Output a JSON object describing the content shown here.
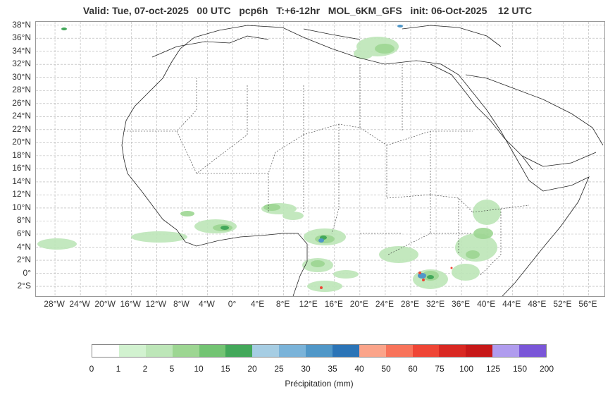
{
  "title": "Valid: Tue, 07-oct-2025   00 UTC   pcp6h   T:+6-12hr   MOL_6KM_GFS   init: 06-Oct-2025    12 UTC",
  "map": {
    "lat_labels": [
      "38°N",
      "36°N",
      "34°N",
      "32°N",
      "30°N",
      "28°N",
      "26°N",
      "24°N",
      "22°N",
      "20°N",
      "18°N",
      "16°N",
      "14°N",
      "12°N",
      "10°N",
      "8°N",
      "6°N",
      "4°N",
      "2°N",
      "0°",
      "2°S"
    ],
    "lon_labels": [
      "28°W",
      "24°W",
      "20°W",
      "16°W",
      "12°W",
      "8°W",
      "4°W",
      "0°",
      "4°E",
      "8°E",
      "12°E",
      "16°E",
      "20°E",
      "24°E",
      "28°E",
      "32°E",
      "36°E",
      "40°E",
      "44°E",
      "48°E",
      "52°E",
      "56°E"
    ],
    "colors": {
      "land_border": "#222222",
      "grid": "#b0b0b0",
      "frame": "#999999"
    }
  },
  "colorbar": {
    "label": "Précipitation (mm)",
    "ticks": [
      "0",
      "1",
      "2",
      "5",
      "10",
      "15",
      "20",
      "25",
      "30",
      "35",
      "40",
      "50",
      "60",
      "75",
      "100",
      "125",
      "150",
      "200"
    ],
    "colors": [
      "#ffffff",
      "#d2f2d0",
      "#bde6b8",
      "#9dd692",
      "#73c473",
      "#43a85a",
      "#a6cde3",
      "#7ab3d9",
      "#5097c8",
      "#2b74b7",
      "#fba48a",
      "#f8735a",
      "#ef4535",
      "#d92822",
      "#c71818",
      "#b09cee",
      "#7a56d8",
      "#4b0082"
    ]
  }
}
